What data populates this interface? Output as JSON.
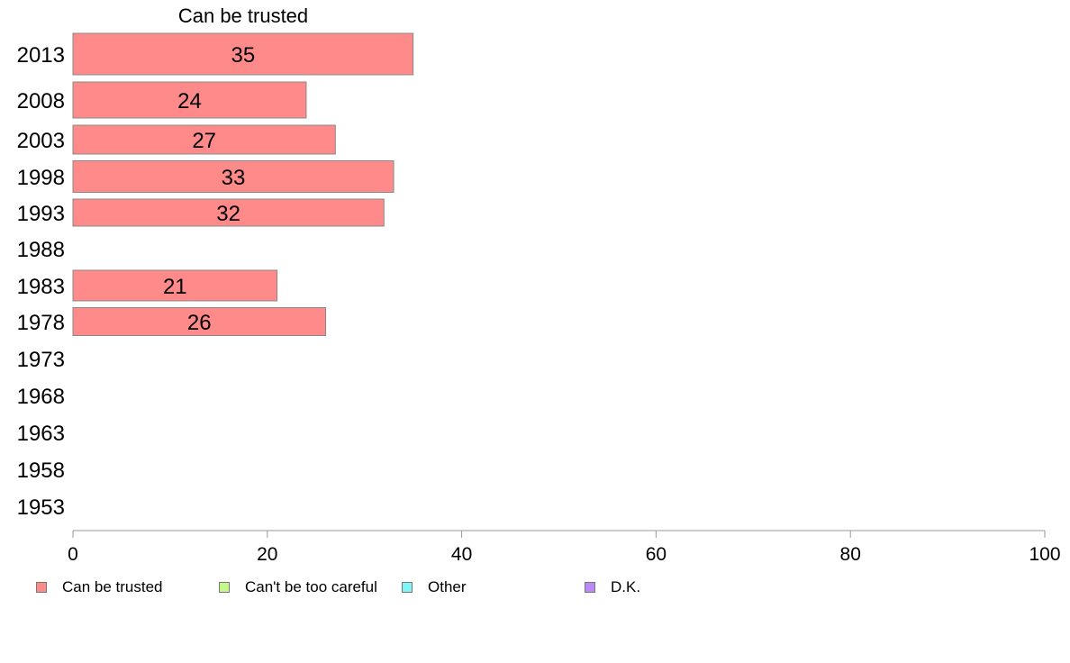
{
  "chart_data": {
    "type": "bar",
    "orientation": "horizontal",
    "title": "Can be trusted",
    "categories": [
      "2013",
      "2008",
      "2003",
      "1998",
      "1993",
      "1988",
      "1983",
      "1978",
      "1973",
      "1968",
      "1963",
      "1958",
      "1953"
    ],
    "series": [
      {
        "name": "Can be trusted",
        "color": "#ff8a8a",
        "values": [
          35,
          24,
          27,
          33,
          32,
          null,
          21,
          26,
          null,
          null,
          null,
          null,
          null
        ]
      }
    ],
    "xlim": [
      0,
      100
    ],
    "xticks": [
      0,
      20,
      40,
      60,
      80,
      100
    ],
    "grid": false,
    "legend_position": "bottom",
    "legend": [
      {
        "label": "Can be trusted",
        "color": "#ff8a8a"
      },
      {
        "label": "Can't be too careful",
        "color": "#c6f78a"
      },
      {
        "label": "Other",
        "color": "#7ff5f5"
      },
      {
        "label": "D.K.",
        "color": "#bc8af7"
      }
    ]
  }
}
